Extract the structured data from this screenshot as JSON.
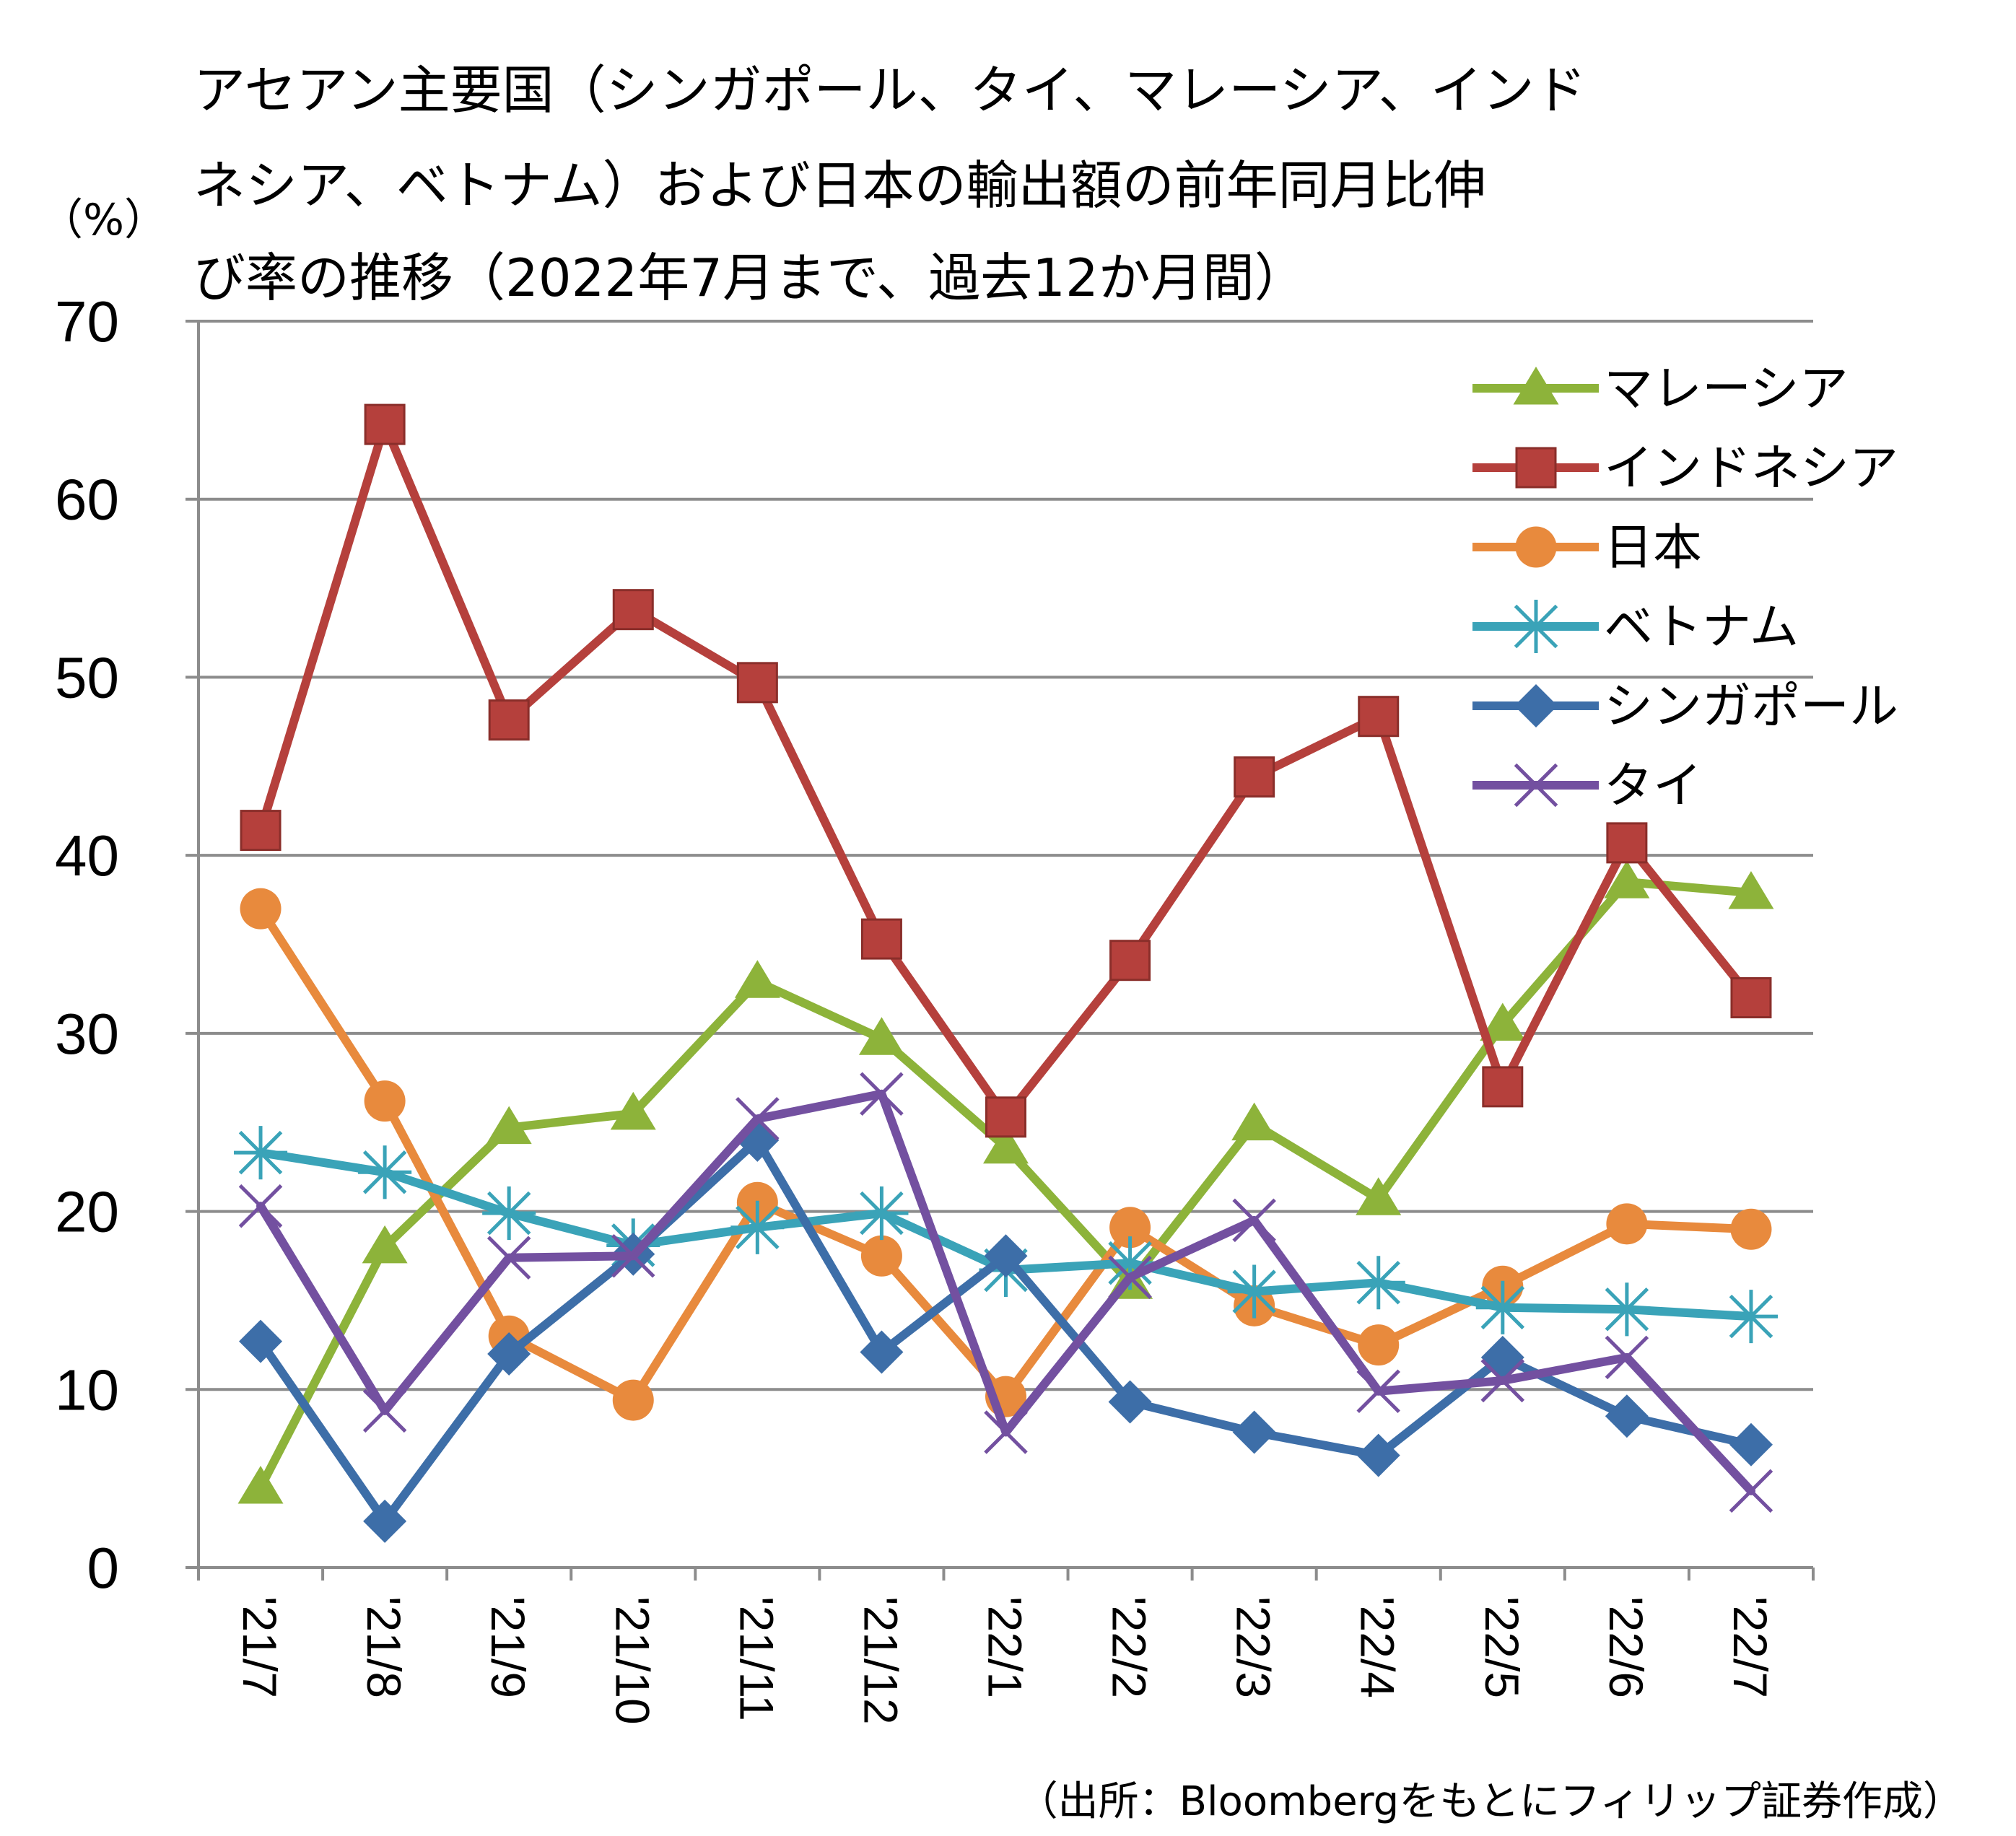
{
  "chart_data": {
    "type": "line",
    "title_lines": [
      "アセアン主要国（シンガポール、タイ、マレーシア、インド",
      "ネシア、ベトナム）および日本の輸出額の前年同月比伸",
      "び率の推移（2022年7月まで、過去12か月間）"
    ],
    "ylabel": "（%）",
    "source": "（出所：Bloombergをもとにフィリップ証券作成）",
    "categories": [
      "'21/7",
      "'21/8",
      "'21/9",
      "'21/10",
      "'21/11",
      "'21/12",
      "'22/1",
      "'22/2",
      "'22/3",
      "'22/4",
      "'22/5",
      "'22/6",
      "'22/7"
    ],
    "ylim": [
      0,
      70
    ],
    "yticks": [
      "0",
      "10",
      "20",
      "30",
      "40",
      "50",
      "60",
      "70"
    ],
    "grid": true,
    "legend_position": "top-right",
    "series": [
      {
        "name": "マレーシア",
        "color": "#8db33a",
        "marker": "triangle",
        "values": [
          4.5,
          18,
          24.7,
          25.5,
          32.9,
          29.7,
          23.6,
          16,
          24.9,
          20.7,
          30.5,
          38.5,
          37.9
        ]
      },
      {
        "name": "インドネシア",
        "color": "#b5403c",
        "marker": "square",
        "values": [
          41.4,
          64.2,
          47.6,
          53.8,
          49.7,
          35.3,
          25.3,
          34.1,
          44.4,
          47.8,
          27,
          40.7,
          32
        ]
      },
      {
        "name": "日本",
        "color": "#e88a3d",
        "marker": "circle",
        "values": [
          37,
          26.2,
          13,
          9.4,
          20.5,
          17.5,
          9.6,
          19.1,
          14.7,
          12.5,
          15.8,
          19.3,
          19
        ]
      },
      {
        "name": "ベトナム",
        "color": "#3aa3b8",
        "marker": "asterisk",
        "values": [
          23.3,
          22.2,
          19.9,
          18.1,
          19.1,
          19.9,
          16.7,
          17.1,
          15.5,
          16,
          14.6,
          14.5,
          14.1
        ]
      },
      {
        "name": "シンガポール",
        "color": "#3d6ea8",
        "marker": "diamond",
        "values": [
          12.7,
          2.6,
          12,
          17.6,
          24,
          12.1,
          17.5,
          9.3,
          7.6,
          6.3,
          11.8,
          8.5,
          6.9
        ]
      },
      {
        "name": "タイ",
        "color": "#7350a0",
        "marker": "x",
        "values": [
          20.3,
          8.8,
          17.4,
          17.5,
          25.2,
          26.6,
          7.6,
          16.3,
          19.5,
          9.9,
          10.5,
          11.8,
          4.3
        ]
      }
    ]
  }
}
